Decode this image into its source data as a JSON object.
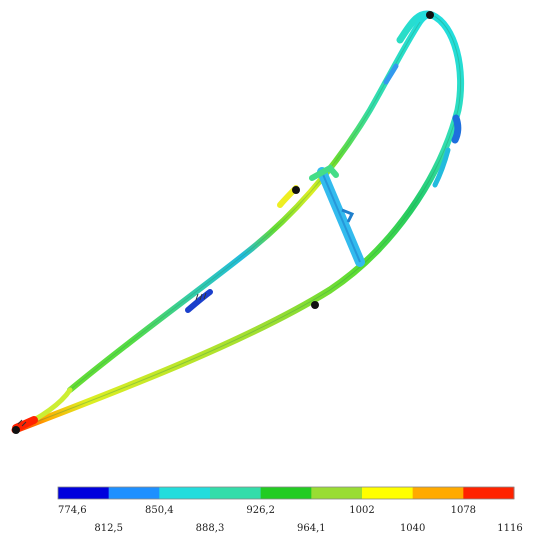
{
  "legend": {
    "labels": [
      "774,6",
      "812,5",
      "850,4",
      "888,3",
      "926,2",
      "964,1",
      "1002",
      "1040",
      "1078",
      "1116"
    ],
    "colors": [
      "#0000dd",
      "#1e90ff",
      "#22dddd",
      "#33ddaa",
      "#22cc22",
      "#99dd33",
      "#ffff00",
      "#ffaa00",
      "#ff2200"
    ]
  },
  "colors": {
    "blue": "#0000dd",
    "light_blue": "#1e90ff",
    "cyan": "#22dddd",
    "cyan_green": "#33ddaa",
    "green": "#22cc22",
    "yellow_green": "#99dd33",
    "yellow": "#ffff00",
    "orange": "#ffaa00",
    "red": "#ff2200"
  }
}
